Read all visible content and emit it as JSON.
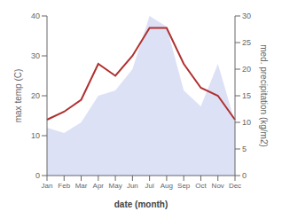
{
  "chart_data": {
    "type": "line",
    "categories": [
      "Jan",
      "Feb",
      "Mar",
      "Apr",
      "May",
      "Jun",
      "Jul",
      "Aug",
      "Sep",
      "Oct",
      "Nov",
      "Dec"
    ],
    "series": [
      {
        "type": "line",
        "color": "#b03030",
        "values": [
          14,
          16,
          19,
          28,
          25,
          30,
          37,
          37,
          28,
          22,
          20,
          14
        ]
      },
      {
        "type": "area",
        "axis": "y2",
        "color": "#c5cdf0",
        "values": [
          9,
          8,
          10,
          15,
          16,
          20,
          30,
          28,
          16,
          13,
          21,
          10
        ]
      }
    ],
    "xlabel": "date (month)",
    "ylabel": "max temp (C)",
    "y2label": "med. precipitation (kg/m2)",
    "ylim": [
      0,
      40
    ],
    "yticks": [
      0,
      10,
      20,
      30,
      40
    ],
    "y2lim": [
      0,
      30
    ],
    "y2ticks": [
      0,
      5,
      10,
      15,
      20,
      25,
      30
    ],
    "grid": false
  }
}
